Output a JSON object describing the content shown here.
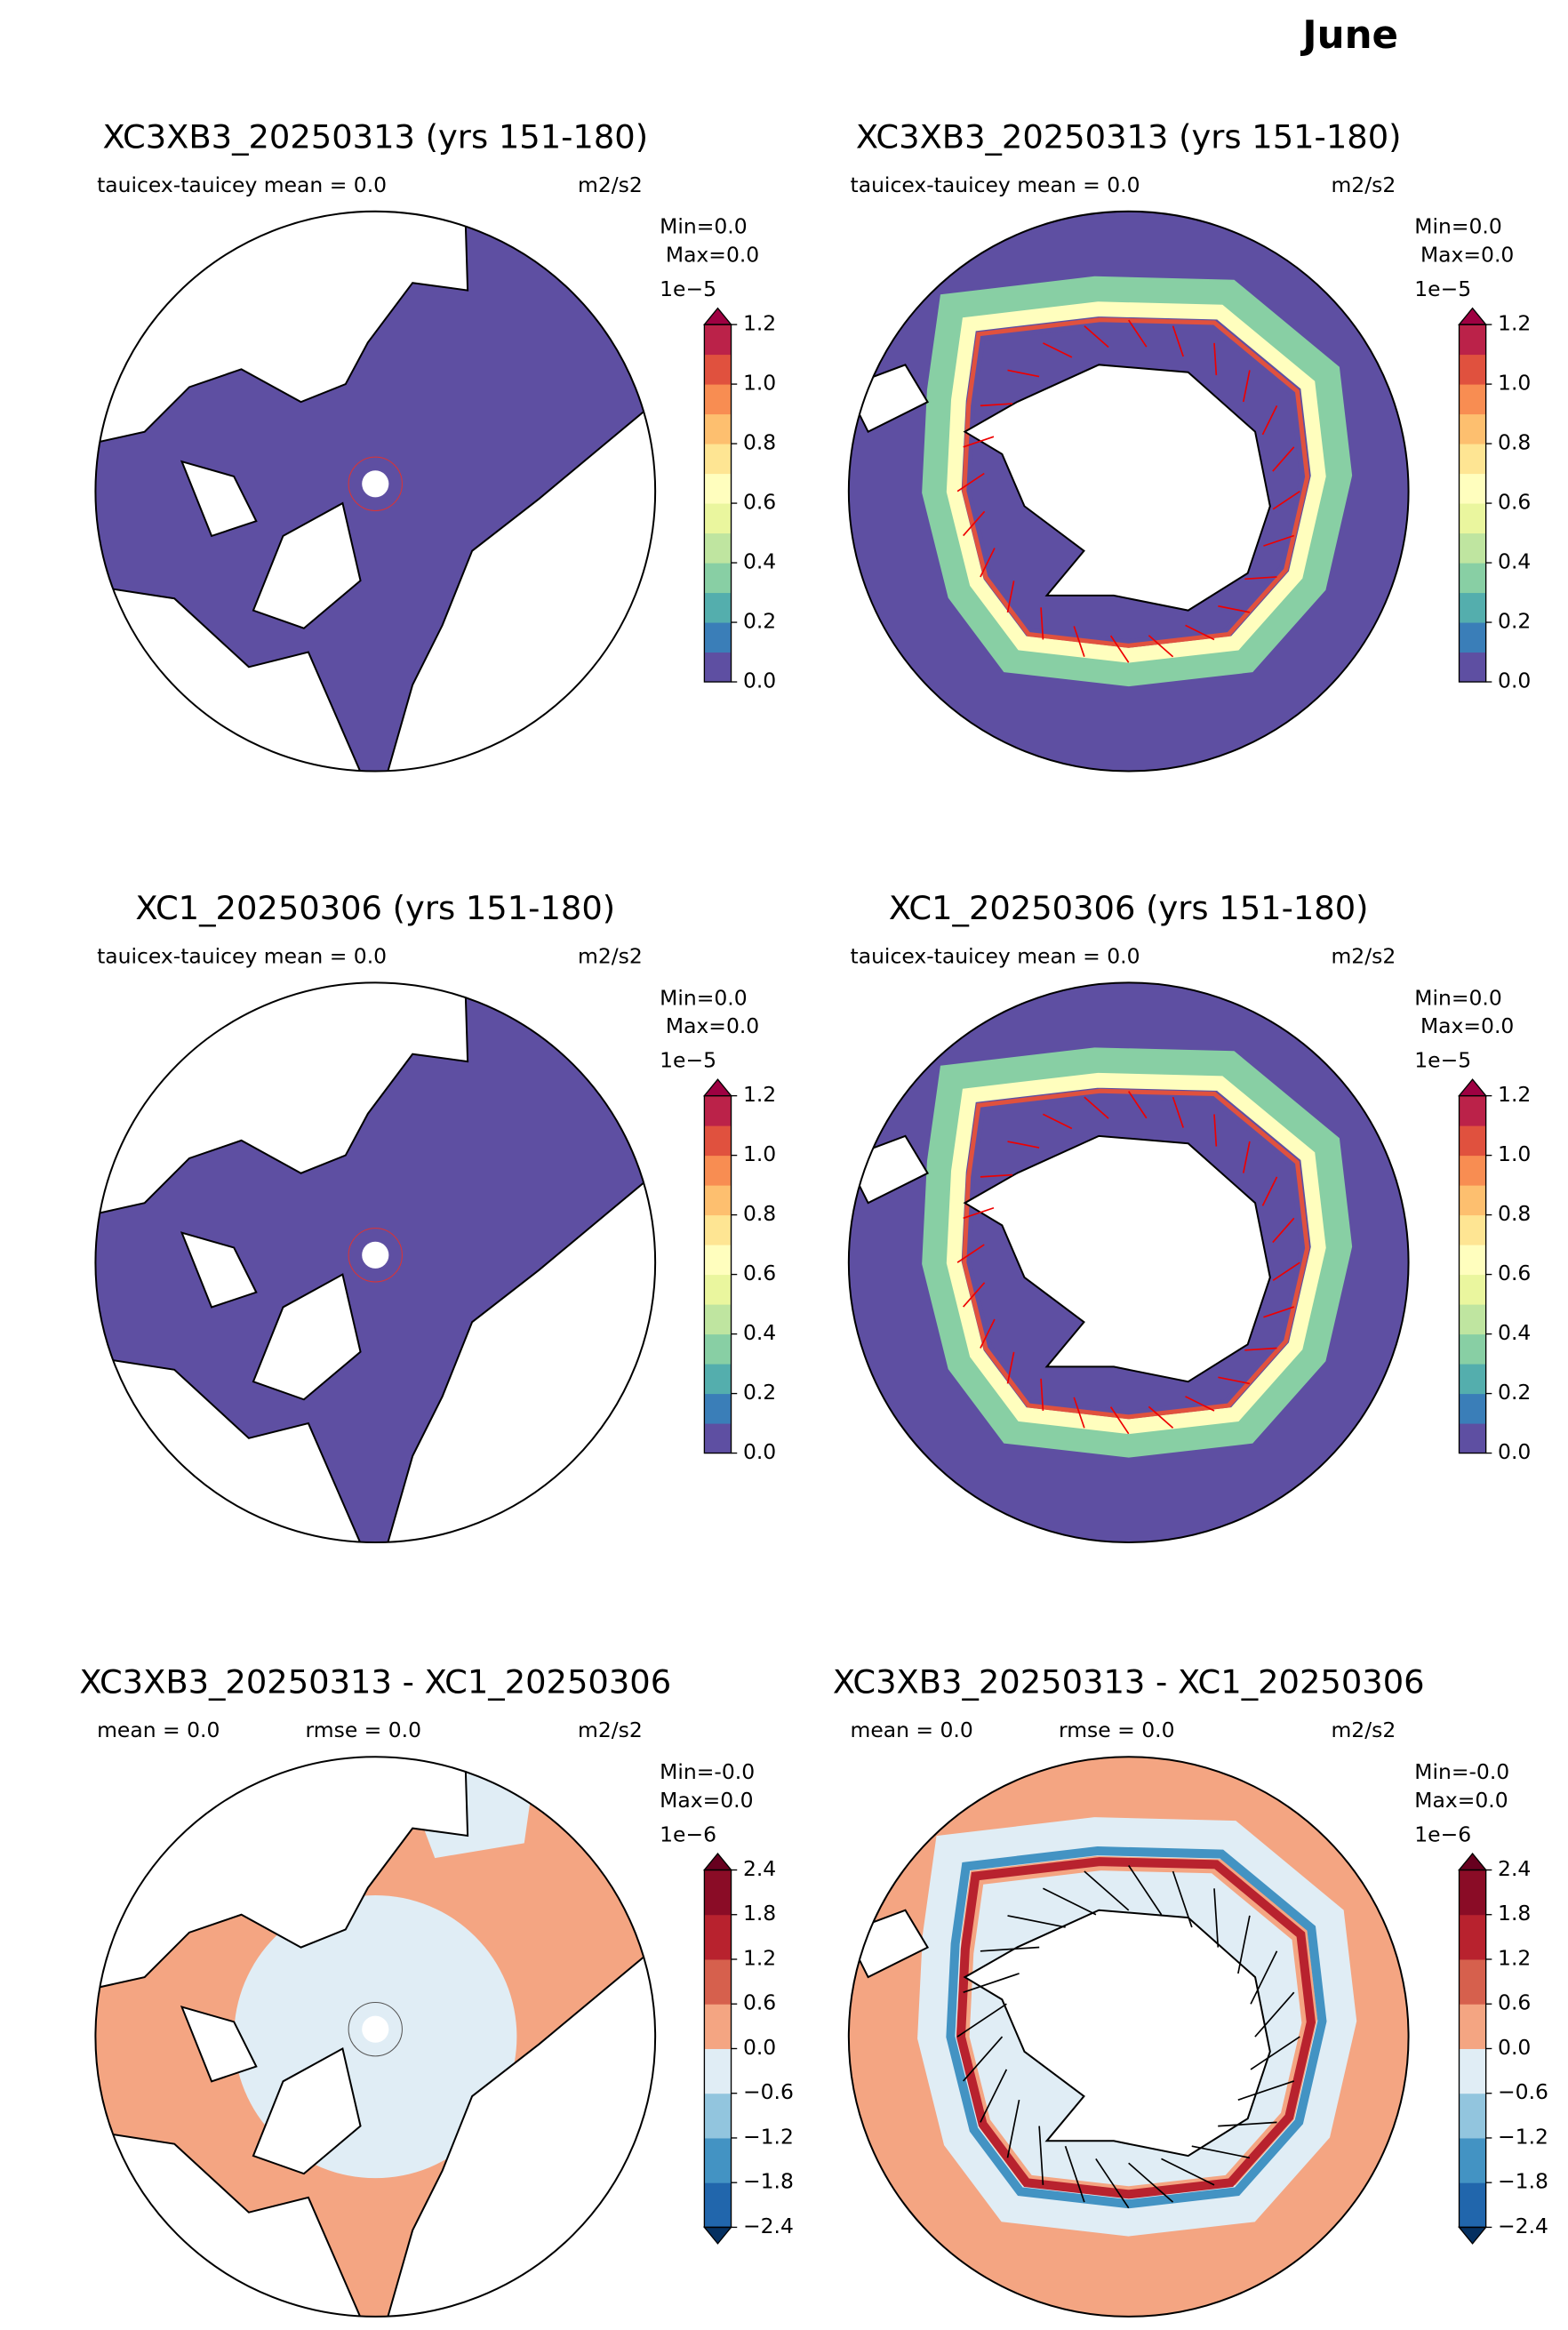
{
  "title": "June",
  "panels": [
    {
      "title": "XC3XB3_20250313 (yrs 151-180)",
      "stats": [
        "tauicex-tauicey  mean = 0.0"
      ],
      "units": "m2/s2",
      "min": "Min=0.0",
      "max": "Max=0.0",
      "hemisphere": "north",
      "kind": "field",
      "colorbar": {
        "exponent": "1e−5",
        "lim": [
          0,
          1.2
        ],
        "ticks": [
          {
            "value": 0,
            "label": "0.0"
          },
          0.2,
          0.4,
          0.6,
          0.8,
          {
            "value": 1,
            "label": "1.0"
          },
          1.2
        ],
        "colors": [
          "#5e4fa2",
          "#3a7eb8",
          "#54aead",
          "#88cfa4",
          "#bfe5a0",
          "#eaf69e",
          "#fffebe",
          "#fee593",
          "#fdbf6f",
          "#f88d52",
          "#e0513e",
          "#bb2249"
        ],
        "over": "#9e0142"
      }
    },
    {
      "title": "XC3XB3_20250313 (yrs 151-180)",
      "stats": [
        "tauicex-tauicey  mean = 0.0"
      ],
      "units": "m2/s2",
      "min": "Min=0.0",
      "max": "Max=0.0",
      "hemisphere": "south",
      "kind": "field",
      "colorbar": {
        "exponent": "1e−5",
        "lim": [
          0,
          1.2
        ],
        "ticks": [
          {
            "value": 0,
            "label": "0.0"
          },
          0.2,
          0.4,
          0.6,
          0.8,
          {
            "value": 1,
            "label": "1.0"
          },
          1.2
        ],
        "colors": [
          "#5e4fa2",
          "#3a7eb8",
          "#54aead",
          "#88cfa4",
          "#bfe5a0",
          "#eaf69e",
          "#fffebe",
          "#fee593",
          "#fdbf6f",
          "#f88d52",
          "#e0513e",
          "#bb2249"
        ],
        "over": "#9e0142"
      }
    },
    {
      "title": "XC1_20250306 (yrs 151-180)",
      "stats": [
        "tauicex-tauicey  mean = 0.0"
      ],
      "units": "m2/s2",
      "min": "Min=0.0",
      "max": "Max=0.0",
      "hemisphere": "north",
      "kind": "field",
      "colorbar": {
        "exponent": "1e−5",
        "lim": [
          0,
          1.2
        ],
        "ticks": [
          {
            "value": 0,
            "label": "0.0"
          },
          0.2,
          0.4,
          0.6,
          0.8,
          {
            "value": 1,
            "label": "1.0"
          },
          1.2
        ],
        "colors": [
          "#5e4fa2",
          "#3a7eb8",
          "#54aead",
          "#88cfa4",
          "#bfe5a0",
          "#eaf69e",
          "#fffebe",
          "#fee593",
          "#fdbf6f",
          "#f88d52",
          "#e0513e",
          "#bb2249"
        ],
        "over": "#9e0142"
      }
    },
    {
      "title": "XC1_20250306 (yrs 151-180)",
      "stats": [
        "tauicex-tauicey  mean = 0.0"
      ],
      "units": "m2/s2",
      "min": "Min=0.0",
      "max": "Max=0.0",
      "hemisphere": "south",
      "kind": "field",
      "colorbar": {
        "exponent": "1e−5",
        "lim": [
          0,
          1.2
        ],
        "ticks": [
          {
            "value": 0,
            "label": "0.0"
          },
          0.2,
          0.4,
          0.6,
          0.8,
          {
            "value": 1,
            "label": "1.0"
          },
          1.2
        ],
        "colors": [
          "#5e4fa2",
          "#3a7eb8",
          "#54aead",
          "#88cfa4",
          "#bfe5a0",
          "#eaf69e",
          "#fffebe",
          "#fee593",
          "#fdbf6f",
          "#f88d52",
          "#e0513e",
          "#bb2249"
        ],
        "over": "#9e0142"
      }
    },
    {
      "title": "XC3XB3_20250313 - XC1_20250306",
      "stats": [
        "mean = 0.0",
        "rmse = 0.0"
      ],
      "units": "m2/s2",
      "min": "Min=-0.0",
      "max": "Max=0.0",
      "hemisphere": "north",
      "kind": "diff",
      "colorbar": {
        "exponent": "1e−6",
        "lim": [
          -2.4,
          2.4
        ],
        "ticks": [
          {
            "value": -2.4,
            "label": "−2.4"
          },
          {
            "value": -1.8,
            "label": "−1.8"
          },
          {
            "value": -1.2,
            "label": "−1.2"
          },
          {
            "value": -0.6,
            "label": "−0.6"
          },
          {
            "value": 0,
            "label": "0.0"
          },
          0.6,
          1.2,
          1.8,
          2.4
        ],
        "colors": [
          "#2166ac",
          "#4393c3",
          "#92c5de",
          "#e0edf5",
          "#f4a582",
          "#d6604d",
          "#b8222e",
          "#8a0c26"
        ],
        "under": "#053061",
        "over": "#67001f"
      }
    },
    {
      "title": "XC3XB3_20250313 - XC1_20250306",
      "stats": [
        "mean = 0.0",
        "rmse = 0.0"
      ],
      "units": "m2/s2",
      "min": "Min=-0.0",
      "max": "Max=0.0",
      "hemisphere": "south",
      "kind": "diff",
      "colorbar": {
        "exponent": "1e−6",
        "lim": [
          -2.4,
          2.4
        ],
        "ticks": [
          {
            "value": -2.4,
            "label": "−2.4"
          },
          {
            "value": -1.8,
            "label": "−1.8"
          },
          {
            "value": -1.2,
            "label": "−1.2"
          },
          {
            "value": -0.6,
            "label": "−0.6"
          },
          {
            "value": 0,
            "label": "0.0"
          },
          0.6,
          1.2,
          1.8,
          2.4
        ],
        "colors": [
          "#2166ac",
          "#4393c3",
          "#92c5de",
          "#e0edf5",
          "#f4a582",
          "#d6604d",
          "#b8222e",
          "#8a0c26"
        ],
        "under": "#053061",
        "over": "#67001f"
      }
    }
  ]
}
